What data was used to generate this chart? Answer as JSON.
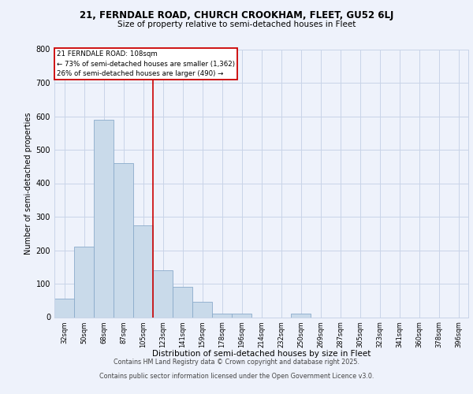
{
  "title_line1": "21, FERNDALE ROAD, CHURCH CROOKHAM, FLEET, GU52 6LJ",
  "title_line2": "Size of property relative to semi-detached houses in Fleet",
  "xlabel": "Distribution of semi-detached houses by size in Fleet",
  "ylabel": "Number of semi-detached properties",
  "categories": [
    "32sqm",
    "50sqm",
    "68sqm",
    "87sqm",
    "105sqm",
    "123sqm",
    "141sqm",
    "159sqm",
    "178sqm",
    "196sqm",
    "214sqm",
    "232sqm",
    "250sqm",
    "269sqm",
    "287sqm",
    "305sqm",
    "323sqm",
    "341sqm",
    "360sqm",
    "378sqm",
    "396sqm"
  ],
  "values": [
    55,
    210,
    590,
    460,
    275,
    140,
    90,
    45,
    10,
    10,
    0,
    0,
    10,
    0,
    0,
    0,
    0,
    0,
    0,
    0,
    0
  ],
  "bar_color": "#c9daea",
  "bar_edgecolor": "#8aabcb",
  "vline_color": "#cc0000",
  "annotation_title": "21 FERNDALE ROAD: 108sqm",
  "annotation_line1": "← 73% of semi-detached houses are smaller (1,362)",
  "annotation_line2": "26% of semi-detached houses are larger (490) →",
  "ylim": [
    0,
    800
  ],
  "yticks": [
    0,
    100,
    200,
    300,
    400,
    500,
    600,
    700,
    800
  ],
  "footer_line1": "Contains HM Land Registry data © Crown copyright and database right 2025.",
  "footer_line2": "Contains public sector information licensed under the Open Government Licence v3.0.",
  "background_color": "#eef2fb",
  "grid_color": "#c8d4e8"
}
